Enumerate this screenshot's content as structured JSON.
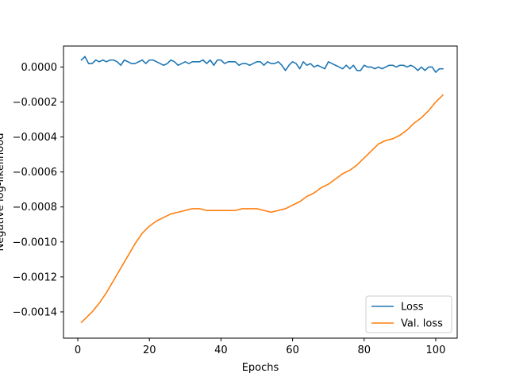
{
  "chart_data": {
    "type": "line",
    "title": "",
    "xlabel": "Epochs",
    "ylabel": "Negative log-likelihood",
    "xlim": [
      -4,
      106
    ],
    "ylim": [
      -0.00155,
      0.00012
    ],
    "xticks": [
      0,
      20,
      40,
      60,
      80,
      100
    ],
    "xtick_labels": [
      "0",
      "20",
      "40",
      "60",
      "80",
      "100"
    ],
    "yticks": [
      0.0,
      -0.0002,
      -0.0004,
      -0.0006,
      -0.0008,
      -0.001,
      -0.0012,
      -0.0014
    ],
    "ytick_labels": [
      "0.0000",
      "−0.0002",
      "−0.0004",
      "−0.0006",
      "−0.0008",
      "−0.0010",
      "−0.0012",
      "−0.0014"
    ],
    "grid": false,
    "legend_position": "lower-right",
    "series": [
      {
        "name": "Loss",
        "color": "#1f77b4",
        "x": [
          1,
          2,
          3,
          4,
          5,
          6,
          7,
          8,
          9,
          10,
          11,
          12,
          13,
          14,
          15,
          16,
          17,
          18,
          19,
          20,
          21,
          22,
          23,
          24,
          25,
          26,
          27,
          28,
          29,
          30,
          31,
          32,
          33,
          34,
          35,
          36,
          37,
          38,
          39,
          40,
          41,
          42,
          43,
          44,
          45,
          46,
          47,
          48,
          49,
          50,
          51,
          52,
          53,
          54,
          55,
          56,
          57,
          58,
          59,
          60,
          61,
          62,
          63,
          64,
          65,
          66,
          67,
          68,
          69,
          70,
          71,
          72,
          73,
          74,
          75,
          76,
          77,
          78,
          79,
          80,
          81,
          82,
          83,
          84,
          85,
          86,
          87,
          88,
          89,
          90,
          91,
          92,
          93,
          94,
          95,
          96,
          97,
          98,
          99,
          100,
          101,
          102
        ],
        "y": [
          4e-05,
          6e-05,
          2e-05,
          2e-05,
          4e-05,
          3e-05,
          4e-05,
          3e-05,
          4e-05,
          4e-05,
          3e-05,
          1e-05,
          4e-05,
          3e-05,
          2e-05,
          2e-05,
          3e-05,
          4e-05,
          2e-05,
          4e-05,
          4e-05,
          3e-05,
          2e-05,
          1e-05,
          2e-05,
          4e-05,
          3e-05,
          1e-05,
          2e-05,
          3e-05,
          2e-05,
          3e-05,
          3e-05,
          3e-05,
          4e-05,
          2e-05,
          4e-05,
          1e-05,
          4e-05,
          4e-05,
          2e-05,
          3e-05,
          3e-05,
          3e-05,
          1e-05,
          2e-05,
          2e-05,
          1e-05,
          2e-05,
          3e-05,
          3e-05,
          1e-05,
          3e-05,
          2e-05,
          2e-05,
          3e-05,
          1e-05,
          -2e-05,
          1e-05,
          3e-05,
          2e-05,
          -1e-05,
          3e-05,
          1e-05,
          2e-05,
          0.0,
          1e-05,
          0.0,
          -1e-05,
          3e-05,
          2e-05,
          1e-05,
          0.0,
          -1e-05,
          1e-05,
          -1e-05,
          1e-05,
          -2e-05,
          -2e-05,
          1e-05,
          0.0,
          0.0,
          -1e-05,
          0.0,
          -1e-05,
          0.0,
          1e-05,
          1e-05,
          0.0,
          1e-05,
          1e-05,
          0.0,
          1e-05,
          0.0,
          -2e-05,
          0.0,
          -2e-05,
          0.0,
          0.0,
          -3e-05,
          -1e-05,
          -1e-05
        ]
      },
      {
        "name": "Val. loss",
        "color": "#ff7f0e",
        "x": [
          1,
          2,
          4,
          6,
          8,
          10,
          12,
          14,
          16,
          18,
          20,
          22,
          24,
          26,
          28,
          30,
          32,
          34,
          36,
          38,
          40,
          42,
          44,
          46,
          48,
          50,
          52,
          54,
          56,
          58,
          60,
          62,
          64,
          66,
          68,
          70,
          72,
          74,
          76,
          78,
          80,
          82,
          84,
          86,
          88,
          90,
          92,
          94,
          96,
          98,
          100,
          102
        ],
        "y": [
          -0.00146,
          -0.00144,
          -0.0014,
          -0.00135,
          -0.00129,
          -0.00122,
          -0.00115,
          -0.00108,
          -0.00101,
          -0.00095,
          -0.00091,
          -0.00088,
          -0.00086,
          -0.00084,
          -0.00083,
          -0.00082,
          -0.00081,
          -0.00081,
          -0.00082,
          -0.00082,
          -0.00082,
          -0.00082,
          -0.00082,
          -0.00081,
          -0.00081,
          -0.00081,
          -0.00082,
          -0.00083,
          -0.00082,
          -0.00081,
          -0.00079,
          -0.00077,
          -0.00074,
          -0.00072,
          -0.00069,
          -0.00067,
          -0.00064,
          -0.00061,
          -0.00059,
          -0.00056,
          -0.00052,
          -0.00048,
          -0.00044,
          -0.00042,
          -0.00041,
          -0.00039,
          -0.00036,
          -0.00032,
          -0.00029,
          -0.00025,
          -0.0002,
          -0.00016
        ]
      }
    ]
  }
}
